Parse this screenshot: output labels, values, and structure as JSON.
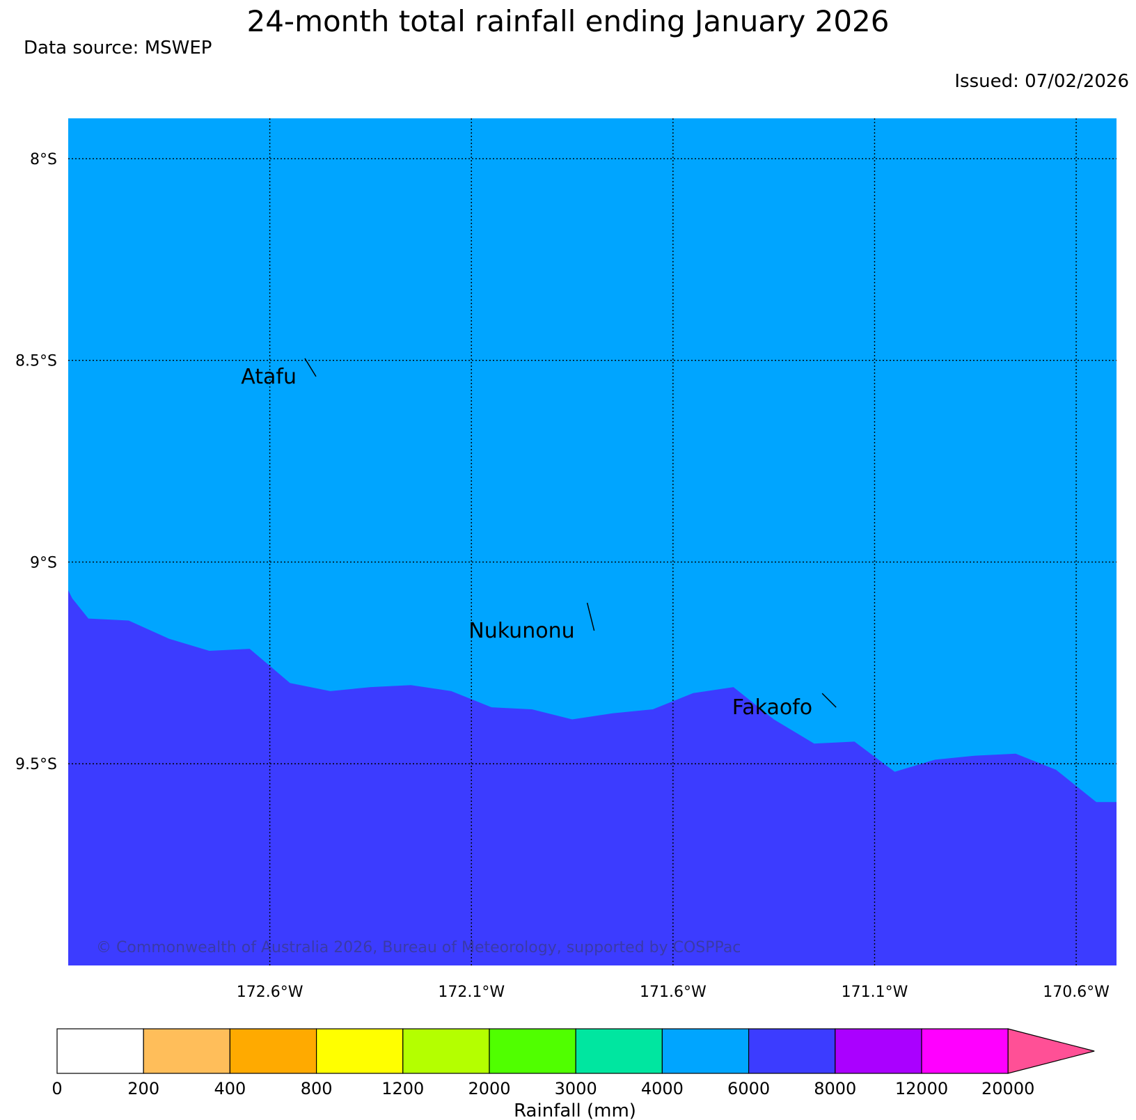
{
  "title": "24-month total rainfall ending January 2026",
  "data_source": "Data source: MSWEP",
  "issued": "Issued: 07/02/2026",
  "copyright": "© Commonwealth of Australia 2026, Bureau of Meteorology, supported by COSPPac",
  "map": {
    "lon_range": [
      -173.1,
      -170.5
    ],
    "lat_range": [
      -10.0,
      -7.9
    ],
    "lon_ticks": [
      {
        "value": -172.6,
        "label": "172.6°W"
      },
      {
        "value": -172.1,
        "label": "172.1°W"
      },
      {
        "value": -171.6,
        "label": "171.6°W"
      },
      {
        "value": -171.1,
        "label": "171.1°W"
      },
      {
        "value": -170.6,
        "label": "170.6°W"
      }
    ],
    "lat_ticks": [
      {
        "value": -8.0,
        "label": "8°S"
      },
      {
        "value": -8.5,
        "label": "8.5°S"
      },
      {
        "value": -9.0,
        "label": "9°S"
      },
      {
        "value": -9.5,
        "label": "9.5°S"
      }
    ],
    "grid": true,
    "places": [
      {
        "name": "Atafu",
        "lon": -172.52,
        "lat": -8.54
      },
      {
        "name": "Nukunonu",
        "lon": -171.83,
        "lat": -9.17
      },
      {
        "name": "Fakaofo",
        "lon": -171.23,
        "lat": -9.36
      }
    ],
    "fields": [
      {
        "band": "4000-6000",
        "color": "#00a5ff"
      },
      {
        "band": "6000-8000",
        "color": "#3c3cff"
      }
    ],
    "boundary_4000_6000_to_6000_8000": [
      [
        -173.1,
        -9.07
      ],
      [
        -173.09,
        -9.09
      ],
      [
        -173.05,
        -9.14
      ],
      [
        -172.95,
        -9.145
      ],
      [
        -172.85,
        -9.19
      ],
      [
        -172.75,
        -9.22
      ],
      [
        -172.65,
        -9.215
      ],
      [
        -172.55,
        -9.3
      ],
      [
        -172.45,
        -9.32
      ],
      [
        -172.35,
        -9.31
      ],
      [
        -172.25,
        -9.305
      ],
      [
        -172.15,
        -9.32
      ],
      [
        -172.05,
        -9.36
      ],
      [
        -171.95,
        -9.365
      ],
      [
        -171.85,
        -9.39
      ],
      [
        -171.75,
        -9.375
      ],
      [
        -171.65,
        -9.365
      ],
      [
        -171.55,
        -9.325
      ],
      [
        -171.45,
        -9.31
      ],
      [
        -171.35,
        -9.39
      ],
      [
        -171.25,
        -9.45
      ],
      [
        -171.15,
        -9.445
      ],
      [
        -171.05,
        -9.52
      ],
      [
        -170.95,
        -9.49
      ],
      [
        -170.85,
        -9.48
      ],
      [
        -170.75,
        -9.475
      ],
      [
        -170.65,
        -9.515
      ],
      [
        -170.55,
        -9.595
      ],
      [
        -170.5,
        -9.595
      ]
    ]
  },
  "colorbar": {
    "title": "Rainfall (mm)",
    "labels": [
      "0",
      "200",
      "400",
      "800",
      "1200",
      "2000",
      "3000",
      "4000",
      "6000",
      "8000",
      "12000",
      "20000"
    ],
    "colors": [
      "#ffffff",
      "#ffbe5a",
      "#ffaa00",
      "#ffff00",
      "#b4ff00",
      "#50ff00",
      "#00e6a0",
      "#00a5ff",
      "#3c3cff",
      "#aa00ff",
      "#ff00ff"
    ],
    "extend_color": "#ff5096"
  }
}
